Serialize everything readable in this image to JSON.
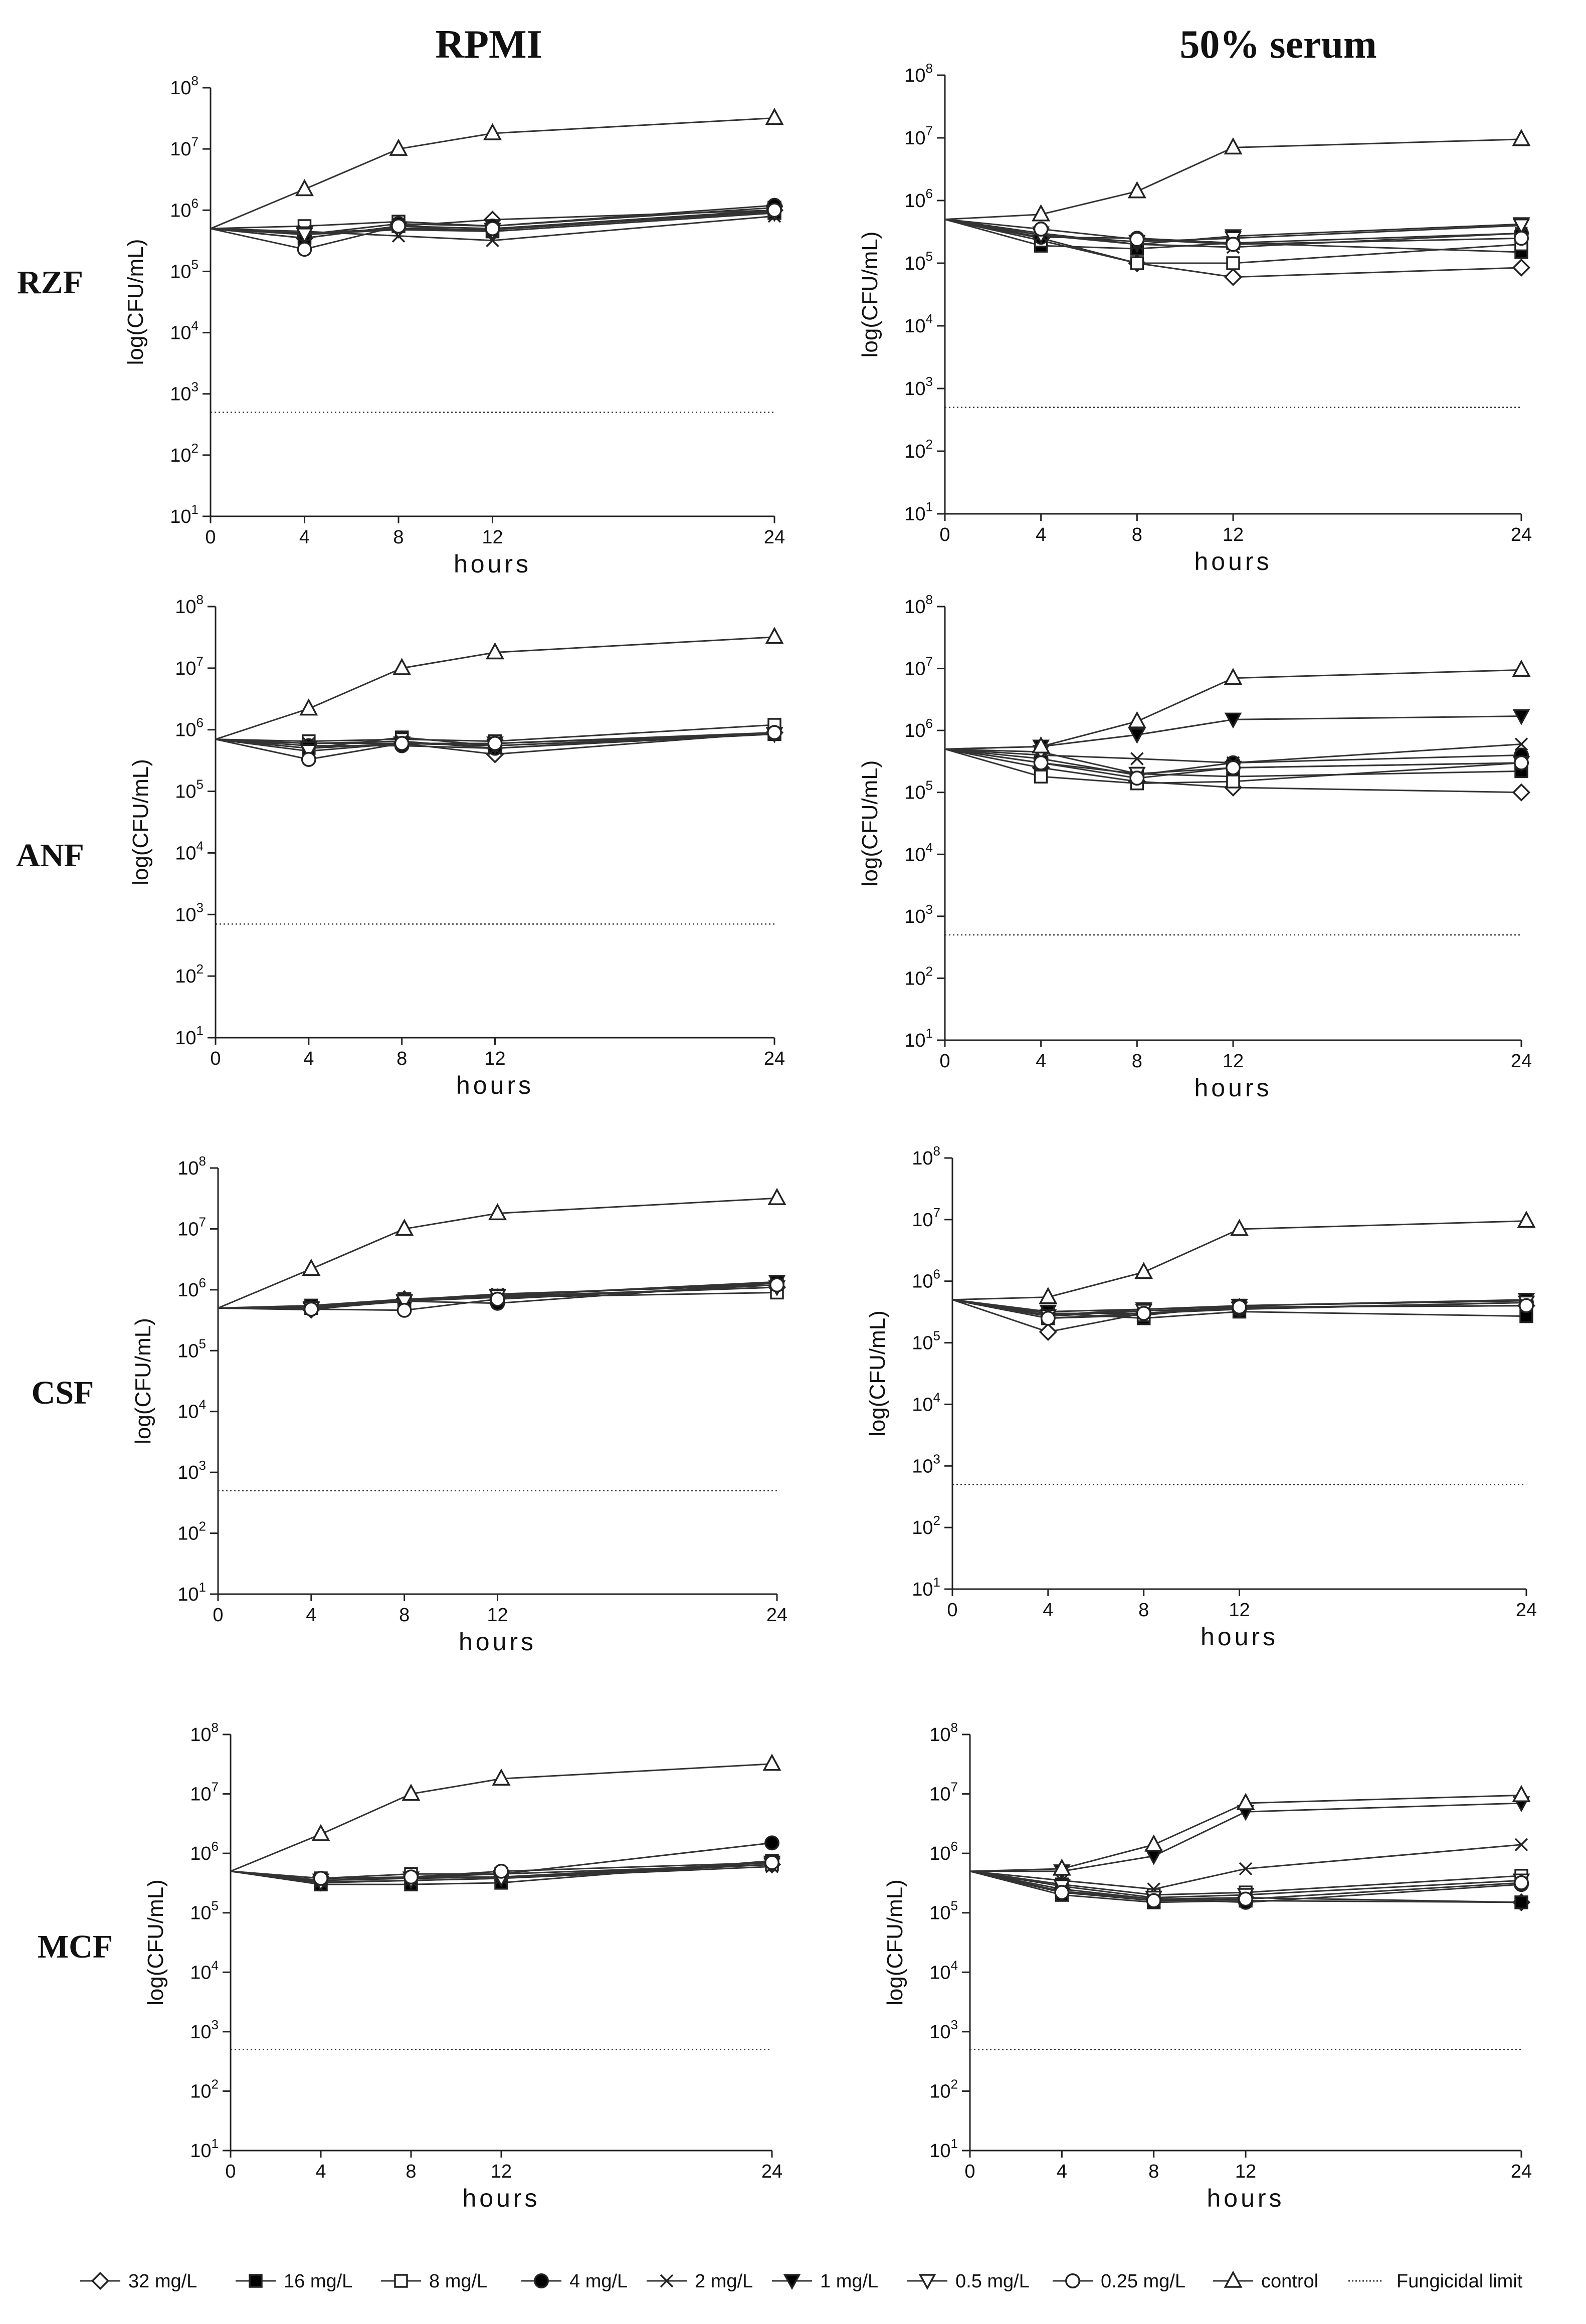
{
  "columns": [
    "RPMI",
    "50% serum"
  ],
  "rows": [
    "RZF",
    "ANF",
    "CSF",
    "MCF"
  ],
  "legend": [
    {
      "key": "32",
      "label": "32 mg/L",
      "marker": "diamond-open"
    },
    {
      "key": "16",
      "label": "16 mg/L",
      "marker": "square-filled"
    },
    {
      "key": "8",
      "label": "8 mg/L",
      "marker": "square-open"
    },
    {
      "key": "4",
      "label": "4 mg/L",
      "marker": "circle-filled"
    },
    {
      "key": "2",
      "label": "2 mg/L",
      "marker": "cross"
    },
    {
      "key": "1",
      "label": "1 mg/L",
      "marker": "triangle-down-filled"
    },
    {
      "key": "0.5",
      "label": "0.5 mg/L",
      "marker": "triangle-down-open"
    },
    {
      "key": "0.25",
      "label": "0.25 mg/L",
      "marker": "circle-open"
    },
    {
      "key": "control",
      "label": "control",
      "marker": "triangle-up-open"
    },
    {
      "key": "limit",
      "label": "Fungicidal limit",
      "marker": "dotted-line"
    }
  ],
  "chart_data": [
    {
      "type": "line",
      "row": "RZF",
      "column": "RPMI",
      "xlabel": "hours",
      "ylabel": "log(CFU/mL)",
      "x": [
        0,
        4,
        8,
        12,
        24
      ],
      "xticks": [
        "0",
        "4",
        "8",
        "12",
        "24"
      ],
      "ylim_exp": [
        1,
        8
      ],
      "fungicidal_limit": 500,
      "series": [
        {
          "name": "32 mg/L",
          "values": [
            500000,
            350000,
            550000,
            700000,
            1000000
          ]
        },
        {
          "name": "16 mg/L",
          "values": [
            500000,
            350000,
            550000,
            450000,
            900000
          ]
        },
        {
          "name": "8 mg/L",
          "values": [
            500000,
            550000,
            650000,
            550000,
            1100000
          ]
        },
        {
          "name": "4 mg/L",
          "values": [
            500000,
            400000,
            600000,
            550000,
            1200000
          ]
        },
        {
          "name": "2 mg/L",
          "values": [
            500000,
            450000,
            380000,
            320000,
            800000
          ]
        },
        {
          "name": "1 mg/L",
          "values": [
            500000,
            420000,
            500000,
            480000,
            950000
          ]
        },
        {
          "name": "0.5 mg/L",
          "values": [
            500000,
            400000,
            480000,
            450000,
            900000
          ]
        },
        {
          "name": "0.25 mg/L",
          "values": [
            500000,
            230000,
            550000,
            500000,
            1000000
          ]
        },
        {
          "name": "control",
          "values": [
            500000,
            2200000,
            10000000,
            18000000,
            32000000
          ]
        }
      ]
    },
    {
      "type": "line",
      "row": "RZF",
      "column": "50% serum",
      "xlabel": "hours",
      "ylabel": "log(CFU/mL)",
      "x": [
        0,
        4,
        8,
        12,
        24
      ],
      "xticks": [
        "0",
        "4",
        "8",
        "12",
        "24"
      ],
      "ylim_exp": [
        1,
        8
      ],
      "fungicidal_limit": 500,
      "series": [
        {
          "name": "32 mg/L",
          "values": [
            500000,
            250000,
            100000,
            60000,
            85000
          ]
        },
        {
          "name": "16 mg/L",
          "values": [
            500000,
            190000,
            170000,
            210000,
            150000
          ]
        },
        {
          "name": "8 mg/L",
          "values": [
            500000,
            230000,
            100000,
            100000,
            200000
          ]
        },
        {
          "name": "4 mg/L",
          "values": [
            500000,
            260000,
            250000,
            210000,
            300000
          ]
        },
        {
          "name": "2 mg/L",
          "values": [
            500000,
            280000,
            200000,
            180000,
            300000
          ]
        },
        {
          "name": "1 mg/L",
          "values": [
            500000,
            300000,
            200000,
            270000,
            420000
          ]
        },
        {
          "name": "0.5 mg/L",
          "values": [
            500000,
            280000,
            220000,
            250000,
            400000
          ]
        },
        {
          "name": "0.25 mg/L",
          "values": [
            500000,
            350000,
            240000,
            200000,
            250000
          ]
        },
        {
          "name": "control",
          "values": [
            500000,
            600000,
            1400000,
            7000000,
            9500000
          ]
        }
      ]
    },
    {
      "type": "line",
      "row": "ANF",
      "column": "RPMI",
      "xlabel": "hours",
      "ylabel": "log(CFU/mL)",
      "x": [
        0,
        4,
        8,
        12,
        24
      ],
      "xticks": [
        "0",
        "4",
        "8",
        "12",
        "24"
      ],
      "ylim_exp": [
        1,
        8
      ],
      "fungicidal_limit": 700,
      "series": [
        {
          "name": "32 mg/L",
          "values": [
            700000,
            600000,
            600000,
            400000,
            900000
          ]
        },
        {
          "name": "16 mg/L",
          "values": [
            700000,
            500000,
            750000,
            550000,
            850000
          ]
        },
        {
          "name": "8 mg/L",
          "values": [
            700000,
            650000,
            700000,
            650000,
            1200000
          ]
        },
        {
          "name": "4 mg/L",
          "values": [
            700000,
            550000,
            550000,
            500000,
            900000
          ]
        },
        {
          "name": "2 mg/L",
          "values": [
            700000,
            600000,
            650000,
            500000,
            850000
          ]
        },
        {
          "name": "1 mg/L",
          "values": [
            700000,
            500000,
            600000,
            600000,
            850000
          ]
        },
        {
          "name": "0.5 mg/L",
          "values": [
            700000,
            450000,
            600000,
            550000,
            850000
          ]
        },
        {
          "name": "0.25 mg/L",
          "values": [
            700000,
            330000,
            600000,
            600000,
            900000
          ]
        },
        {
          "name": "control",
          "values": [
            700000,
            2200000,
            10000000,
            18000000,
            32000000
          ]
        }
      ]
    },
    {
      "type": "line",
      "row": "ANF",
      "column": "50% serum",
      "xlabel": "hours",
      "ylabel": "log(CFU/mL)",
      "x": [
        0,
        4,
        8,
        12,
        24
      ],
      "xticks": [
        "0",
        "4",
        "8",
        "12",
        "24"
      ],
      "ylim_exp": [
        1,
        8
      ],
      "fungicidal_limit": 500,
      "series": [
        {
          "name": "32 mg/L",
          "values": [
            500000,
            250000,
            150000,
            120000,
            100000
          ]
        },
        {
          "name": "16 mg/L",
          "values": [
            500000,
            300000,
            200000,
            180000,
            220000
          ]
        },
        {
          "name": "8 mg/L",
          "values": [
            500000,
            180000,
            140000,
            150000,
            300000
          ]
        },
        {
          "name": "4 mg/L",
          "values": [
            500000,
            350000,
            190000,
            300000,
            400000
          ]
        },
        {
          "name": "2 mg/L",
          "values": [
            500000,
            400000,
            350000,
            300000,
            600000
          ]
        },
        {
          "name": "1 mg/L",
          "values": [
            500000,
            550000,
            850000,
            1500000,
            1700000
          ]
        },
        {
          "name": "0.5 mg/L",
          "values": [
            500000,
            450000,
            200000,
            250000,
            300000
          ]
        },
        {
          "name": "0.25 mg/L",
          "values": [
            500000,
            300000,
            170000,
            250000,
            300000
          ]
        },
        {
          "name": "control",
          "values": [
            500000,
            550000,
            1400000,
            7000000,
            9500000
          ]
        }
      ]
    },
    {
      "type": "line",
      "row": "CSF",
      "column": "RPMI",
      "xlabel": "hours",
      "ylabel": "log(CFU/mL)",
      "x": [
        0,
        4,
        8,
        12,
        24
      ],
      "xticks": [
        "0",
        "4",
        "8",
        "12",
        "24"
      ],
      "ylim_exp": [
        1,
        8
      ],
      "fungicidal_limit": 500,
      "series": [
        {
          "name": "32 mg/L",
          "values": [
            500000,
            470000,
            700000,
            750000,
            1100000
          ]
        },
        {
          "name": "16 mg/L",
          "values": [
            500000,
            550000,
            700000,
            800000,
            1300000
          ]
        },
        {
          "name": "8 mg/L",
          "values": [
            500000,
            500000,
            650000,
            750000,
            900000
          ]
        },
        {
          "name": "4 mg/L",
          "values": [
            500000,
            500000,
            650000,
            600000,
            1300000
          ]
        },
        {
          "name": "2 mg/L",
          "values": [
            500000,
            520000,
            680000,
            850000,
            1200000
          ]
        },
        {
          "name": "1 mg/L",
          "values": [
            500000,
            480000,
            650000,
            800000,
            1350000
          ]
        },
        {
          "name": "0.5 mg/L",
          "values": [
            500000,
            500000,
            640000,
            780000,
            1100000
          ]
        },
        {
          "name": "0.25 mg/L",
          "values": [
            500000,
            480000,
            460000,
            700000,
            1200000
          ]
        },
        {
          "name": "control",
          "values": [
            500000,
            2200000,
            10000000,
            18000000,
            32000000
          ]
        }
      ]
    },
    {
      "type": "line",
      "row": "CSF",
      "column": "50% serum",
      "xlabel": "hours",
      "ylabel": "log(CFU/mL)",
      "x": [
        0,
        4,
        8,
        12,
        24
      ],
      "xticks": [
        "0",
        "4",
        "8",
        "12",
        "24"
      ],
      "ylim_exp": [
        1,
        8
      ],
      "fungicidal_limit": 500,
      "series": [
        {
          "name": "32 mg/L",
          "values": [
            500000,
            150000,
            300000,
            380000,
            400000
          ]
        },
        {
          "name": "16 mg/L",
          "values": [
            500000,
            300000,
            250000,
            320000,
            270000
          ]
        },
        {
          "name": "8 mg/L",
          "values": [
            500000,
            250000,
            280000,
            400000,
            480000
          ]
        },
        {
          "name": "4 mg/L",
          "values": [
            500000,
            300000,
            300000,
            350000,
            450000
          ]
        },
        {
          "name": "2 mg/L",
          "values": [
            500000,
            280000,
            350000,
            380000,
            400000
          ]
        },
        {
          "name": "1 mg/L",
          "values": [
            500000,
            320000,
            350000,
            400000,
            500000
          ]
        },
        {
          "name": "0.5 mg/L",
          "values": [
            500000,
            270000,
            330000,
            360000,
            450000
          ]
        },
        {
          "name": "0.25 mg/L",
          "values": [
            500000,
            250000,
            300000,
            380000,
            400000
          ]
        },
        {
          "name": "control",
          "values": [
            500000,
            550000,
            1400000,
            7000000,
            9500000
          ]
        }
      ]
    },
    {
      "type": "line",
      "row": "MCF",
      "column": "RPMI",
      "xlabel": "hours",
      "ylabel": "log(CFU/mL)",
      "x": [
        0,
        4,
        8,
        12,
        24
      ],
      "xticks": [
        "0",
        "4",
        "8",
        "12",
        "24"
      ],
      "ylim_exp": [
        1,
        8
      ],
      "fungicidal_limit": 500,
      "series": [
        {
          "name": "32 mg/L",
          "values": [
            500000,
            350000,
            400000,
            400000,
            650000
          ]
        },
        {
          "name": "16 mg/L",
          "values": [
            500000,
            300000,
            300000,
            320000,
            750000
          ]
        },
        {
          "name": "8 mg/L",
          "values": [
            500000,
            380000,
            450000,
            450000,
            650000
          ]
        },
        {
          "name": "4 mg/L",
          "values": [
            500000,
            350000,
            400000,
            450000,
            1500000
          ]
        },
        {
          "name": "2 mg/L",
          "values": [
            500000,
            330000,
            350000,
            380000,
            600000
          ]
        },
        {
          "name": "1 mg/L",
          "values": [
            500000,
            350000,
            380000,
            400000,
            700000
          ]
        },
        {
          "name": "0.5 mg/L",
          "values": [
            500000,
            320000,
            350000,
            380000,
            650000
          ]
        },
        {
          "name": "0.25 mg/L",
          "values": [
            500000,
            380000,
            400000,
            500000,
            700000
          ]
        },
        {
          "name": "control",
          "values": [
            500000,
            2100000,
            10000000,
            18000000,
            32000000
          ]
        }
      ]
    },
    {
      "type": "line",
      "row": "MCF",
      "column": "50% serum",
      "xlabel": "hours",
      "ylabel": "log(CFU/mL)",
      "x": [
        0,
        4,
        8,
        12,
        24
      ],
      "xticks": [
        "0",
        "4",
        "8",
        "12",
        "24"
      ],
      "ylim_exp": [
        1,
        8
      ],
      "fungicidal_limit": 500,
      "series": [
        {
          "name": "32 mg/L",
          "values": [
            500000,
            250000,
            170000,
            180000,
            150000
          ]
        },
        {
          "name": "16 mg/L",
          "values": [
            500000,
            200000,
            150000,
            160000,
            150000
          ]
        },
        {
          "name": "8 mg/L",
          "values": [
            500000,
            300000,
            200000,
            220000,
            420000
          ]
        },
        {
          "name": "4 mg/L",
          "values": [
            500000,
            230000,
            170000,
            150000,
            300000
          ]
        },
        {
          "name": "2 mg/L",
          "values": [
            500000,
            350000,
            250000,
            550000,
            1400000
          ]
        },
        {
          "name": "1 mg/L",
          "values": [
            500000,
            500000,
            900000,
            5000000,
            7000000
          ]
        },
        {
          "name": "0.5 mg/L",
          "values": [
            500000,
            280000,
            180000,
            200000,
            350000
          ]
        },
        {
          "name": "0.25 mg/L",
          "values": [
            500000,
            220000,
            160000,
            170000,
            320000
          ]
        },
        {
          "name": "control",
          "values": [
            500000,
            550000,
            1400000,
            7000000,
            9500000
          ]
        }
      ]
    }
  ]
}
